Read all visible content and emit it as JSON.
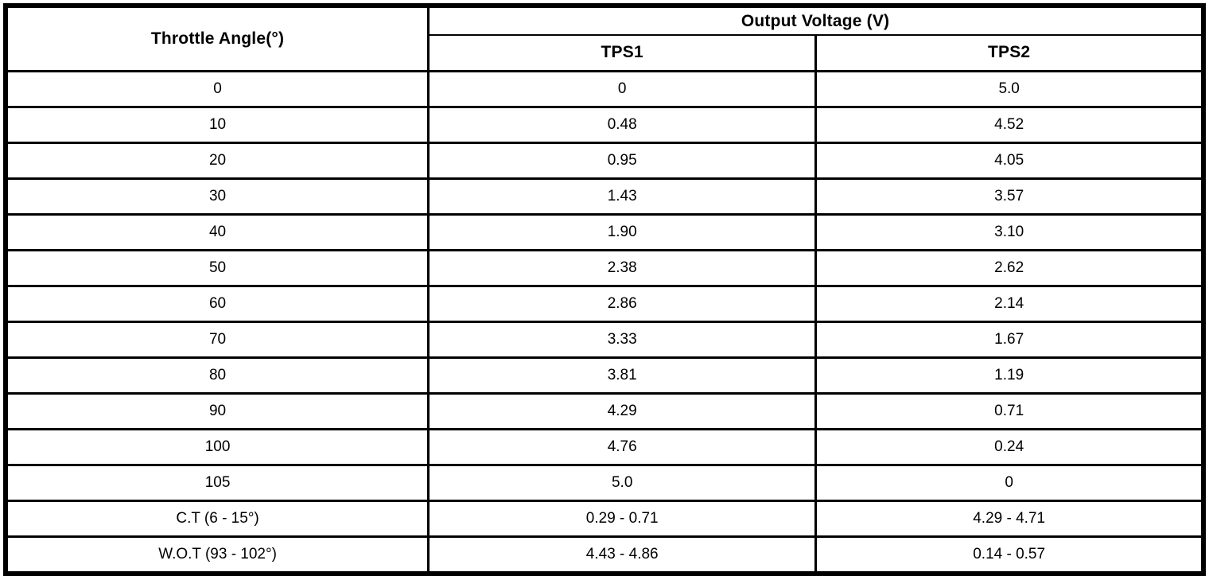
{
  "table": {
    "header": {
      "throttle_angle": "Throttle Angle(°)",
      "output_voltage_group": "Output Voltage (V)",
      "tps1": "TPS1",
      "tps2": "TPS2"
    },
    "rows": [
      {
        "angle": "0",
        "tps1": "0",
        "tps2": "5.0"
      },
      {
        "angle": "10",
        "tps1": "0.48",
        "tps2": "4.52"
      },
      {
        "angle": "20",
        "tps1": "0.95",
        "tps2": "4.05"
      },
      {
        "angle": "30",
        "tps1": "1.43",
        "tps2": "3.57"
      },
      {
        "angle": "40",
        "tps1": "1.90",
        "tps2": "3.10"
      },
      {
        "angle": "50",
        "tps1": "2.38",
        "tps2": "2.62"
      },
      {
        "angle": "60",
        "tps1": "2.86",
        "tps2": "2.14"
      },
      {
        "angle": "70",
        "tps1": "3.33",
        "tps2": "1.67"
      },
      {
        "angle": "80",
        "tps1": "3.81",
        "tps2": "1.19"
      },
      {
        "angle": "90",
        "tps1": "4.29",
        "tps2": "0.71"
      },
      {
        "angle": "100",
        "tps1": "4.76",
        "tps2": "0.24"
      },
      {
        "angle": "105",
        "tps1": "5.0",
        "tps2": "0"
      },
      {
        "angle": "C.T (6 - 15°)",
        "tps1": "0.29 - 0.71",
        "tps2": "4.29 - 4.71"
      },
      {
        "angle": "W.O.T (93 - 102°)",
        "tps1": "4.43 - 4.86",
        "tps2": "0.14 - 0.57"
      }
    ],
    "colors": {
      "border": "#000000",
      "background": "#ffffff",
      "text": "#000000"
    }
  }
}
